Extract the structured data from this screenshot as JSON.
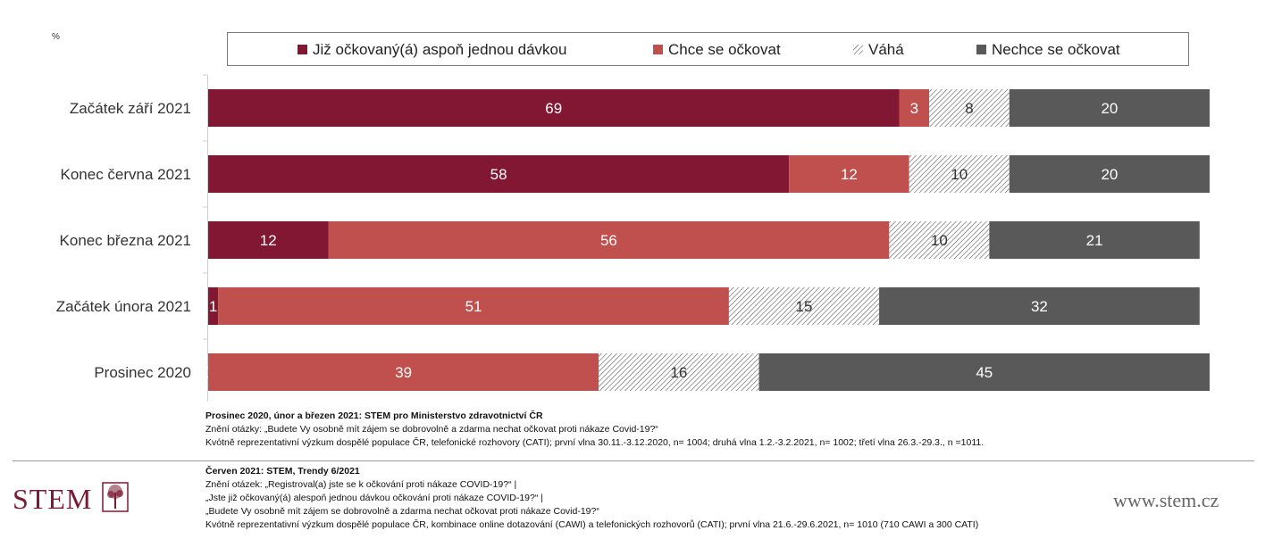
{
  "chart_data": {
    "type": "bar",
    "orientation": "horizontal",
    "stacked": true,
    "ylabel_unit": "%",
    "categories": [
      "Začátek září 2021",
      "Konec června 2021",
      "Konec března 2021",
      "Začátek února 2021",
      "Prosinec 2020"
    ],
    "series": [
      {
        "name": "Již očkovaný(á) aspoň jednou dávkou",
        "color": "#821733",
        "values": [
          69,
          58,
          12,
          1,
          0
        ]
      },
      {
        "name": "Chce se očkovat",
        "color": "#c0504d",
        "values": [
          3,
          12,
          56,
          51,
          39
        ]
      },
      {
        "name": "Váhá",
        "color": "hatched",
        "values": [
          8,
          10,
          10,
          15,
          16
        ]
      },
      {
        "name": "Nechce se očkovat",
        "color": "#595959",
        "values": [
          20,
          20,
          21,
          32,
          45
        ]
      }
    ],
    "xlim": [
      0,
      100
    ],
    "legend": "top"
  },
  "notes": {
    "block1": {
      "title": "Prosinec 2020, únor a březen 2021: STEM pro Ministerstvo zdravotnictví ČR",
      "lines": [
        "Znění otázky: „Budete Vy osobně mít zájem se dobrovolně a zdarma nechat očkovat proti nákaze Covid-19?“",
        "Kvótně reprezentativní výzkum dospělé populace ČR, telefonické rozhovory (CATI); první vlna 30.11.-3.12.2020, n= 1004; druhá vlna 1.2.-3.2.2021, n= 1002; třetí vlna 26.3.-29.3., n =1011."
      ]
    },
    "block2": {
      "title": "Červen 2021: STEM, Trendy 6/2021",
      "lines": [
        "Znění otázek: „Registroval(a) jste se k očkování proti nákaze COVID-19?“ |",
        "„Jste již očkovaný(á) alespoň jednou dávkou očkování proti nákaze COVID-19?“ |",
        "„Budete Vy osobně mít zájem se dobrovolně a zdarma nechat očkovat proti nákaze Covid-19?“",
        "Kvótně reprezentativní výzkum dospělé populace ČR, kombinace online dotazování (CAWI) a telefonických rozhovorů (CATI); první vlna 21.6.-29.6.2021, n= 1010 (710 CAWI a 300 CATI)"
      ]
    }
  },
  "branding": {
    "logo_text": "STEM",
    "website": "www.stem.cz",
    "brand_color": "#7a1c33"
  }
}
